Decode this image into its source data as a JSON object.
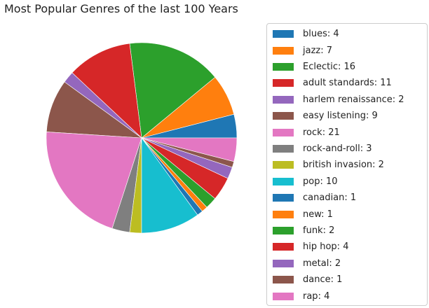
{
  "chart_data": {
    "type": "pie",
    "title": "Most Popular Genres of the last 100 Years",
    "start_angle_deg": 0,
    "direction": "counterclockwise",
    "slices": [
      {
        "label": "blues",
        "value": 4,
        "color": "#1f77b4"
      },
      {
        "label": "jazz",
        "value": 7,
        "color": "#ff7f0e"
      },
      {
        "label": "Eclectic",
        "value": 16,
        "color": "#2ca02c"
      },
      {
        "label": "adult standards",
        "value": 11,
        "color": "#d62728"
      },
      {
        "label": "harlem renaissance",
        "value": 2,
        "color": "#9467bd"
      },
      {
        "label": "easy listening",
        "value": 9,
        "color": "#8c564b"
      },
      {
        "label": "rock",
        "value": 21,
        "color": "#e377c2"
      },
      {
        "label": "rock-and-roll",
        "value": 3,
        "color": "#7f7f7f"
      },
      {
        "label": "british invasion",
        "value": 2,
        "color": "#bcbd22"
      },
      {
        "label": "pop",
        "value": 10,
        "color": "#17becf"
      },
      {
        "label": "canadian",
        "value": 1,
        "color": "#1f77b4"
      },
      {
        "label": "new",
        "value": 1,
        "color": "#ff7f0e"
      },
      {
        "label": "funk",
        "value": 2,
        "color": "#2ca02c"
      },
      {
        "label": "hip hop",
        "value": 4,
        "color": "#d62728"
      },
      {
        "label": "metal",
        "value": 2,
        "color": "#9467bd"
      },
      {
        "label": "dance",
        "value": 1,
        "color": "#8c564b"
      },
      {
        "label": "rap",
        "value": 4,
        "color": "#e377c2"
      }
    ],
    "legend": {
      "placement": "right",
      "entries": [
        "blues: 4",
        "jazz: 7",
        "Eclectic: 16",
        "adult standards: 11",
        "harlem renaissance: 2",
        "easy listening: 9",
        "rock: 21",
        "rock-and-roll: 3",
        "british invasion: 2",
        "pop: 10",
        "canadian: 1",
        "new: 1",
        "funk: 2",
        "hip hop: 4",
        "metal: 2",
        "dance: 1",
        "rap: 4"
      ]
    }
  }
}
